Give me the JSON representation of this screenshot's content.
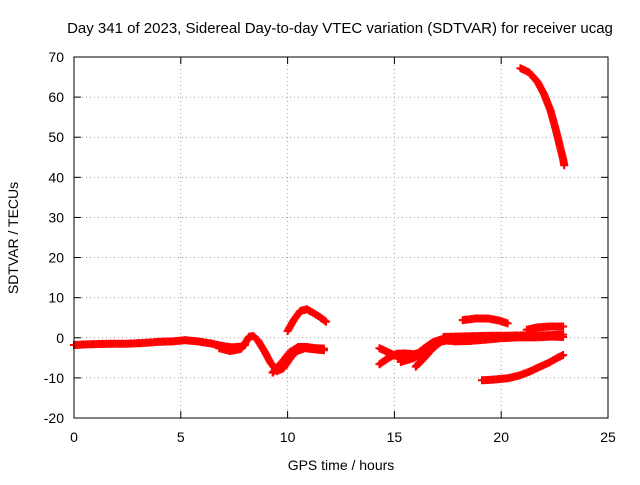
{
  "chart_data": {
    "type": "scatter",
    "title": "Day 341 of 2023, Sidereal Day-to-day VTEC variation (SDTVAR) for receiver ucag",
    "xlabel": "GPS time / hours",
    "ylabel": "SDTVAR / TECUs",
    "xlim": [
      0,
      25
    ],
    "ylim": [
      -20,
      70
    ],
    "xticks": [
      0,
      5,
      10,
      15,
      20,
      25
    ],
    "yticks": [
      -20,
      -10,
      0,
      10,
      20,
      30,
      40,
      50,
      60,
      70
    ],
    "grid": true,
    "legend": "none",
    "series": [
      {
        "name": "SDTVAR",
        "color": "#ff0000",
        "marker": "plus",
        "tracks": [
          [
            [
              0.0,
              -1.8
            ],
            [
              0.8,
              -1.6
            ],
            [
              1.6,
              -1.5
            ],
            [
              2.4,
              -1.5
            ],
            [
              3.2,
              -1.3
            ],
            [
              4.0,
              -1.0
            ],
            [
              4.6,
              -0.9
            ],
            [
              5.2,
              -0.6
            ],
            [
              5.8,
              -0.9
            ],
            [
              6.4,
              -1.4
            ],
            [
              6.9,
              -2.0
            ],
            [
              7.4,
              -2.4
            ],
            [
              7.8,
              -2.2
            ],
            [
              8.0,
              -1.8
            ]
          ],
          [
            [
              6.8,
              -2.6
            ],
            [
              7.3,
              -3.3
            ],
            [
              7.8,
              -2.8
            ],
            [
              8.0,
              -1.5
            ],
            [
              8.2,
              0.3
            ],
            [
              8.4,
              0.4
            ],
            [
              8.6,
              -0.6
            ],
            [
              8.9,
              -3.2
            ],
            [
              9.2,
              -6.2
            ],
            [
              9.5,
              -8.3
            ],
            [
              9.8,
              -7.6
            ],
            [
              10.1,
              -5.3
            ],
            [
              10.4,
              -3.4
            ],
            [
              10.8,
              -2.6
            ],
            [
              11.3,
              -2.9
            ],
            [
              11.7,
              -3.1
            ]
          ],
          [
            [
              9.3,
              -8.7
            ],
            [
              9.7,
              -6.3
            ],
            [
              10.1,
              -3.6
            ],
            [
              10.5,
              -2.3
            ],
            [
              10.9,
              -2.3
            ],
            [
              11.3,
              -2.6
            ],
            [
              11.7,
              -2.7
            ]
          ],
          [
            [
              10.0,
              1.7
            ],
            [
              10.3,
              4.5
            ],
            [
              10.6,
              6.7
            ],
            [
              10.9,
              7.1
            ],
            [
              11.2,
              6.2
            ],
            [
              11.5,
              5.2
            ],
            [
              11.8,
              4.0
            ]
          ],
          [
            [
              14.3,
              -2.6
            ],
            [
              14.7,
              -3.6
            ],
            [
              15.1,
              -4.6
            ],
            [
              15.5,
              -5.5
            ],
            [
              15.9,
              -5.1
            ],
            [
              16.2,
              -4.2
            ]
          ],
          [
            [
              14.3,
              -6.6
            ],
            [
              14.7,
              -5.1
            ],
            [
              15.1,
              -4.0
            ],
            [
              15.5,
              -3.9
            ],
            [
              15.9,
              -4.1
            ],
            [
              16.3,
              -3.6
            ],
            [
              16.7,
              -2.3
            ],
            [
              17.0,
              -1.2
            ],
            [
              17.4,
              -0.7
            ],
            [
              17.8,
              -0.8
            ]
          ],
          [
            [
              15.3,
              -6.0
            ],
            [
              15.7,
              -5.4
            ],
            [
              16.0,
              -4.3
            ],
            [
              16.4,
              -2.6
            ],
            [
              16.8,
              -1.1
            ],
            [
              17.2,
              -0.4
            ],
            [
              17.7,
              -0.4
            ],
            [
              18.2,
              -0.3
            ]
          ],
          [
            [
              16.0,
              -7.2
            ],
            [
              16.4,
              -5.0
            ],
            [
              16.8,
              -2.6
            ],
            [
              17.2,
              -0.9
            ],
            [
              17.6,
              -0.2
            ],
            [
              18.0,
              0.0
            ]
          ],
          [
            [
              17.3,
              0.2
            ],
            [
              18.0,
              0.3
            ],
            [
              18.7,
              0.4
            ],
            [
              19.5,
              0.5
            ],
            [
              20.2,
              0.5
            ],
            [
              21.0,
              0.6
            ],
            [
              21.8,
              0.6
            ],
            [
              22.5,
              0.7
            ],
            [
              22.9,
              0.8
            ]
          ],
          [
            [
              17.8,
              -0.9
            ],
            [
              18.5,
              -0.8
            ],
            [
              19.2,
              -0.5
            ],
            [
              20.0,
              -0.1
            ],
            [
              20.8,
              0.1
            ],
            [
              21.6,
              0.1
            ],
            [
              22.4,
              0.3
            ],
            [
              22.9,
              0.2
            ]
          ],
          [
            [
              18.2,
              4.4
            ],
            [
              18.8,
              4.8
            ],
            [
              19.4,
              4.8
            ],
            [
              19.9,
              4.3
            ],
            [
              20.3,
              3.6
            ]
          ],
          [
            [
              19.1,
              -10.6
            ],
            [
              19.7,
              -10.4
            ],
            [
              20.3,
              -10.1
            ],
            [
              20.8,
              -9.5
            ],
            [
              21.3,
              -8.5
            ],
            [
              21.7,
              -7.5
            ],
            [
              22.2,
              -6.3
            ],
            [
              22.6,
              -5.1
            ],
            [
              22.9,
              -4.3
            ]
          ],
          [
            [
              21.2,
              2.0
            ],
            [
              21.7,
              2.6
            ],
            [
              22.3,
              2.8
            ],
            [
              22.9,
              2.8
            ]
          ],
          [
            [
              20.9,
              67.2
            ],
            [
              21.3,
              66.2
            ],
            [
              21.7,
              63.8
            ],
            [
              22.0,
              60.8
            ],
            [
              22.3,
              56.8
            ],
            [
              22.5,
              53.0
            ],
            [
              22.7,
              48.8
            ],
            [
              22.9,
              44.5
            ],
            [
              22.95,
              43.0
            ]
          ]
        ]
      }
    ]
  }
}
